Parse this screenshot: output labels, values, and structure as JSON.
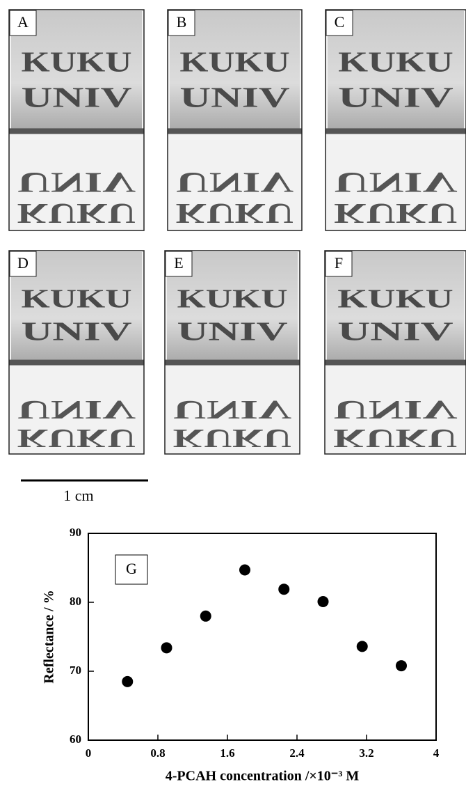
{
  "figure": {
    "panels": [
      "A",
      "B",
      "C",
      "D",
      "E",
      "F"
    ],
    "photo_text": [
      "KUKU",
      "UNIV"
    ],
    "scale_bar": "1 cm"
  },
  "chart_data": {
    "type": "scatter",
    "annotation": "G",
    "x_label": "4-PCAH concentration /×10⁻³ M",
    "y_label": "Reflectance / %",
    "x": [
      0.45,
      0.9,
      1.35,
      1.8,
      2.25,
      2.7,
      3.15,
      3.6
    ],
    "values": [
      68.5,
      73.4,
      78,
      84.7,
      81.9,
      80.1,
      73.6,
      70.8
    ],
    "color": "#000000",
    "xlim": [
      0,
      4
    ],
    "xticks": [
      0,
      0.8,
      1.6,
      2.4,
      3.2,
      4
    ],
    "ylim": [
      60,
      90
    ],
    "yticks": [
      60,
      70,
      80,
      90
    ]
  }
}
